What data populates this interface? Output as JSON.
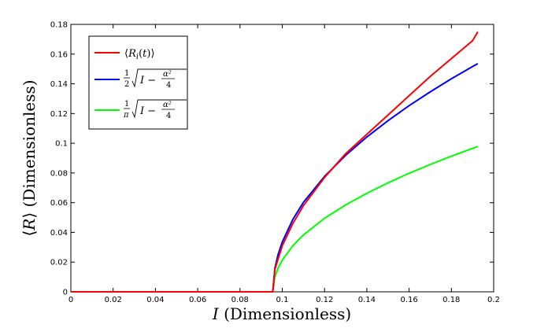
{
  "chart_data": {
    "type": "line",
    "title": "",
    "xlabel": {
      "var": "I",
      "unit": "(Dimensionless)"
    },
    "ylabel": {
      "lang": "⟨",
      "var": "R",
      "rang": "⟩",
      "unit": "(Dimensionless)"
    },
    "xlim": [
      0,
      0.2
    ],
    "ylim": [
      0,
      0.18
    ],
    "xticks": [
      "0",
      "0.02",
      "0.04",
      "0.06",
      "0.08",
      "0.1",
      "0.12",
      "0.14",
      "0.16",
      "0.18",
      "0.2"
    ],
    "yticks": [
      "0",
      "0.02",
      "0.04",
      "0.06",
      "0.08",
      "0.1",
      "0.12",
      "0.14",
      "0.16",
      "0.18"
    ],
    "grid": false,
    "legend_position": "top-left",
    "threshold_x": 0.0955,
    "x_end": 0.1925,
    "series": [
      {
        "name": "⟨R_i(t)⟩",
        "color": "#ff0000",
        "x": [
          0,
          0.0955,
          0.0965,
          0.098,
          0.1,
          0.105,
          0.11,
          0.12,
          0.13,
          0.14,
          0.15,
          0.16,
          0.17,
          0.18,
          0.19,
          0.1925
        ],
        "y": [
          0,
          0,
          0.015,
          0.022,
          0.031,
          0.046,
          0.058,
          0.077,
          0.093,
          0.106,
          0.119,
          0.132,
          0.145,
          0.157,
          0.169,
          0.175
        ]
      },
      {
        "name": "½√(I − α²/4)",
        "color": "#0000ff",
        "x": [
          0,
          0.0955,
          0.0965,
          0.098,
          0.1,
          0.105,
          0.11,
          0.12,
          0.13,
          0.14,
          0.15,
          0.16,
          0.17,
          0.18,
          0.19,
          0.1925
        ],
        "y": [
          0,
          0,
          0.0158,
          0.025,
          0.0335,
          0.0487,
          0.0602,
          0.0777,
          0.0919,
          0.1042,
          0.1152,
          0.1253,
          0.1346,
          0.1434,
          0.1516,
          0.1536
        ]
      },
      {
        "name": "(1/π)√(I − α²/4)",
        "color": "#00ff00",
        "x": [
          0,
          0.0955,
          0.0965,
          0.098,
          0.1,
          0.105,
          0.11,
          0.12,
          0.13,
          0.14,
          0.15,
          0.16,
          0.17,
          0.18,
          0.19,
          0.1925
        ],
        "y": [
          0,
          0,
          0.0101,
          0.0159,
          0.0214,
          0.031,
          0.0383,
          0.0495,
          0.0585,
          0.0663,
          0.0733,
          0.0798,
          0.0857,
          0.0913,
          0.0965,
          0.0978
        ]
      }
    ]
  }
}
